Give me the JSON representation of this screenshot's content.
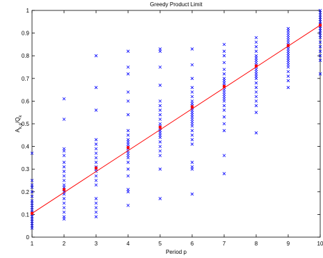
{
  "chart_data": {
    "type": "scatter",
    "title": "Greedy Product Limit",
    "xlabel": "Period p",
    "ylabel": {
      "main": "A",
      "sub": "k,p",
      "rest": "/Q",
      "sub2": "k"
    },
    "xlim": [
      1,
      10
    ],
    "ylim": [
      0,
      1
    ],
    "x_ticks": [
      "1",
      "2",
      "3",
      "4",
      "5",
      "6",
      "7",
      "8",
      "9",
      "10"
    ],
    "y_ticks": [
      "0",
      "0.1",
      "0.2",
      "0.3",
      "0.4",
      "0.5",
      "0.6",
      "0.7",
      "0.8",
      "0.9",
      "1"
    ],
    "grid": false,
    "colors": {
      "points": "#0000ff",
      "fit_line": "#ff0000",
      "axes": "#000000"
    },
    "series": [
      {
        "marker": "x",
        "points": [
          [
            1,
            0.37
          ],
          [
            1,
            0.25
          ],
          [
            1,
            0.23
          ],
          [
            1,
            0.22
          ],
          [
            1,
            0.2
          ],
          [
            1,
            0.18
          ],
          [
            1,
            0.16
          ],
          [
            1,
            0.15
          ],
          [
            1,
            0.14
          ],
          [
            1,
            0.13
          ],
          [
            1,
            0.12
          ],
          [
            1,
            0.11
          ],
          [
            1,
            0.1
          ],
          [
            1,
            0.09
          ],
          [
            1,
            0.08
          ],
          [
            1,
            0.07
          ],
          [
            1,
            0.06
          ],
          [
            1,
            0.05
          ],
          [
            1,
            0.04
          ],
          [
            2,
            0.61
          ],
          [
            2,
            0.52
          ],
          [
            2,
            0.39
          ],
          [
            2,
            0.38
          ],
          [
            2,
            0.36
          ],
          [
            2,
            0.33
          ],
          [
            2,
            0.31
          ],
          [
            2,
            0.29
          ],
          [
            2,
            0.27
          ],
          [
            2,
            0.25
          ],
          [
            2,
            0.23
          ],
          [
            2,
            0.22
          ],
          [
            2,
            0.21
          ],
          [
            2,
            0.2
          ],
          [
            2,
            0.19
          ],
          [
            2,
            0.17
          ],
          [
            2,
            0.15
          ],
          [
            2,
            0.13
          ],
          [
            2,
            0.11
          ],
          [
            2,
            0.09
          ],
          [
            2,
            0.08
          ],
          [
            3,
            0.8
          ],
          [
            3,
            0.66
          ],
          [
            3,
            0.56
          ],
          [
            3,
            0.43
          ],
          [
            3,
            0.41
          ],
          [
            3,
            0.39
          ],
          [
            3,
            0.37
          ],
          [
            3,
            0.35
          ],
          [
            3,
            0.33
          ],
          [
            3,
            0.31
          ],
          [
            3,
            0.3
          ],
          [
            3,
            0.29
          ],
          [
            3,
            0.27
          ],
          [
            3,
            0.25
          ],
          [
            3,
            0.23
          ],
          [
            3,
            0.17
          ],
          [
            3,
            0.15
          ],
          [
            3,
            0.13
          ],
          [
            3,
            0.11
          ],
          [
            3,
            0.09
          ],
          [
            4,
            0.82
          ],
          [
            4,
            0.75
          ],
          [
            4,
            0.72
          ],
          [
            4,
            0.64
          ],
          [
            4,
            0.6
          ],
          [
            4,
            0.54
          ],
          [
            4,
            0.47
          ],
          [
            4,
            0.45
          ],
          [
            4,
            0.43
          ],
          [
            4,
            0.42
          ],
          [
            4,
            0.41
          ],
          [
            4,
            0.4
          ],
          [
            4,
            0.39
          ],
          [
            4,
            0.38
          ],
          [
            4,
            0.37
          ],
          [
            4,
            0.36
          ],
          [
            4,
            0.35
          ],
          [
            4,
            0.33
          ],
          [
            4,
            0.3
          ],
          [
            4,
            0.27
          ],
          [
            4,
            0.21
          ],
          [
            4,
            0.2
          ],
          [
            4,
            0.14
          ],
          [
            5,
            0.83
          ],
          [
            5,
            0.82
          ],
          [
            5,
            0.75
          ],
          [
            5,
            0.67
          ],
          [
            5,
            0.6
          ],
          [
            5,
            0.58
          ],
          [
            5,
            0.56
          ],
          [
            5,
            0.54
          ],
          [
            5,
            0.52
          ],
          [
            5,
            0.5
          ],
          [
            5,
            0.49
          ],
          [
            5,
            0.48
          ],
          [
            5,
            0.47
          ],
          [
            5,
            0.46
          ],
          [
            5,
            0.45
          ],
          [
            5,
            0.44
          ],
          [
            5,
            0.42
          ],
          [
            5,
            0.4
          ],
          [
            5,
            0.38
          ],
          [
            5,
            0.36
          ],
          [
            5,
            0.3
          ],
          [
            5,
            0.17
          ],
          [
            6,
            0.83
          ],
          [
            6,
            0.76
          ],
          [
            6,
            0.7
          ],
          [
            6,
            0.66
          ],
          [
            6,
            0.64
          ],
          [
            6,
            0.62
          ],
          [
            6,
            0.6
          ],
          [
            6,
            0.59
          ],
          [
            6,
            0.58
          ],
          [
            6,
            0.57
          ],
          [
            6,
            0.56
          ],
          [
            6,
            0.55
          ],
          [
            6,
            0.54
          ],
          [
            6,
            0.53
          ],
          [
            6,
            0.52
          ],
          [
            6,
            0.51
          ],
          [
            6,
            0.5
          ],
          [
            6,
            0.49
          ],
          [
            6,
            0.47
          ],
          [
            6,
            0.45
          ],
          [
            6,
            0.43
          ],
          [
            6,
            0.41
          ],
          [
            6,
            0.33
          ],
          [
            6,
            0.31
          ],
          [
            6,
            0.3
          ],
          [
            6,
            0.19
          ],
          [
            7,
            0.85
          ],
          [
            7,
            0.82
          ],
          [
            7,
            0.8
          ],
          [
            7,
            0.77
          ],
          [
            7,
            0.74
          ],
          [
            7,
            0.72
          ],
          [
            7,
            0.7
          ],
          [
            7,
            0.69
          ],
          [
            7,
            0.68
          ],
          [
            7,
            0.67
          ],
          [
            7,
            0.66
          ],
          [
            7,
            0.65
          ],
          [
            7,
            0.64
          ],
          [
            7,
            0.63
          ],
          [
            7,
            0.62
          ],
          [
            7,
            0.61
          ],
          [
            7,
            0.6
          ],
          [
            7,
            0.58
          ],
          [
            7,
            0.56
          ],
          [
            7,
            0.53
          ],
          [
            7,
            0.5
          ],
          [
            7,
            0.47
          ],
          [
            7,
            0.36
          ],
          [
            7,
            0.28
          ],
          [
            8,
            0.88
          ],
          [
            8,
            0.86
          ],
          [
            8,
            0.84
          ],
          [
            8,
            0.82
          ],
          [
            8,
            0.8
          ],
          [
            8,
            0.79
          ],
          [
            8,
            0.78
          ],
          [
            8,
            0.77
          ],
          [
            8,
            0.76
          ],
          [
            8,
            0.75
          ],
          [
            8,
            0.74
          ],
          [
            8,
            0.73
          ],
          [
            8,
            0.72
          ],
          [
            8,
            0.71
          ],
          [
            8,
            0.7
          ],
          [
            8,
            0.68
          ],
          [
            8,
            0.66
          ],
          [
            8,
            0.64
          ],
          [
            8,
            0.62
          ],
          [
            8,
            0.6
          ],
          [
            8,
            0.58
          ],
          [
            8,
            0.55
          ],
          [
            8,
            0.46
          ],
          [
            9,
            0.92
          ],
          [
            9,
            0.91
          ],
          [
            9,
            0.9
          ],
          [
            9,
            0.89
          ],
          [
            9,
            0.88
          ],
          [
            9,
            0.87
          ],
          [
            9,
            0.86
          ],
          [
            9,
            0.85
          ],
          [
            9,
            0.84
          ],
          [
            9,
            0.83
          ],
          [
            9,
            0.82
          ],
          [
            9,
            0.81
          ],
          [
            9,
            0.8
          ],
          [
            9,
            0.79
          ],
          [
            9,
            0.78
          ],
          [
            9,
            0.77
          ],
          [
            9,
            0.76
          ],
          [
            9,
            0.75
          ],
          [
            9,
            0.73
          ],
          [
            9,
            0.71
          ],
          [
            9,
            0.69
          ],
          [
            9,
            0.66
          ],
          [
            10,
            1.0
          ],
          [
            10,
            0.99
          ],
          [
            10,
            0.98
          ],
          [
            10,
            0.97
          ],
          [
            10,
            0.96
          ],
          [
            10,
            0.95
          ],
          [
            10,
            0.94
          ],
          [
            10,
            0.93
          ],
          [
            10,
            0.92
          ],
          [
            10,
            0.91
          ],
          [
            10,
            0.9
          ],
          [
            10,
            0.89
          ],
          [
            10,
            0.88
          ],
          [
            10,
            0.86
          ],
          [
            10,
            0.84
          ],
          [
            10,
            0.82
          ],
          [
            10,
            0.8
          ],
          [
            10,
            0.78
          ],
          [
            10,
            0.72
          ]
        ]
      }
    ],
    "fit_line": {
      "x": [
        1,
        10
      ],
      "y": [
        0.105,
        0.935
      ],
      "marker_points": [
        [
          1,
          0.105
        ],
        [
          2,
          0.21
        ],
        [
          3,
          0.305
        ],
        [
          4,
          0.395
        ],
        [
          5,
          0.485
        ],
        [
          6,
          0.575
        ],
        [
          7,
          0.665
        ],
        [
          8,
          0.755
        ],
        [
          9,
          0.845
        ],
        [
          10,
          0.935
        ]
      ]
    }
  }
}
